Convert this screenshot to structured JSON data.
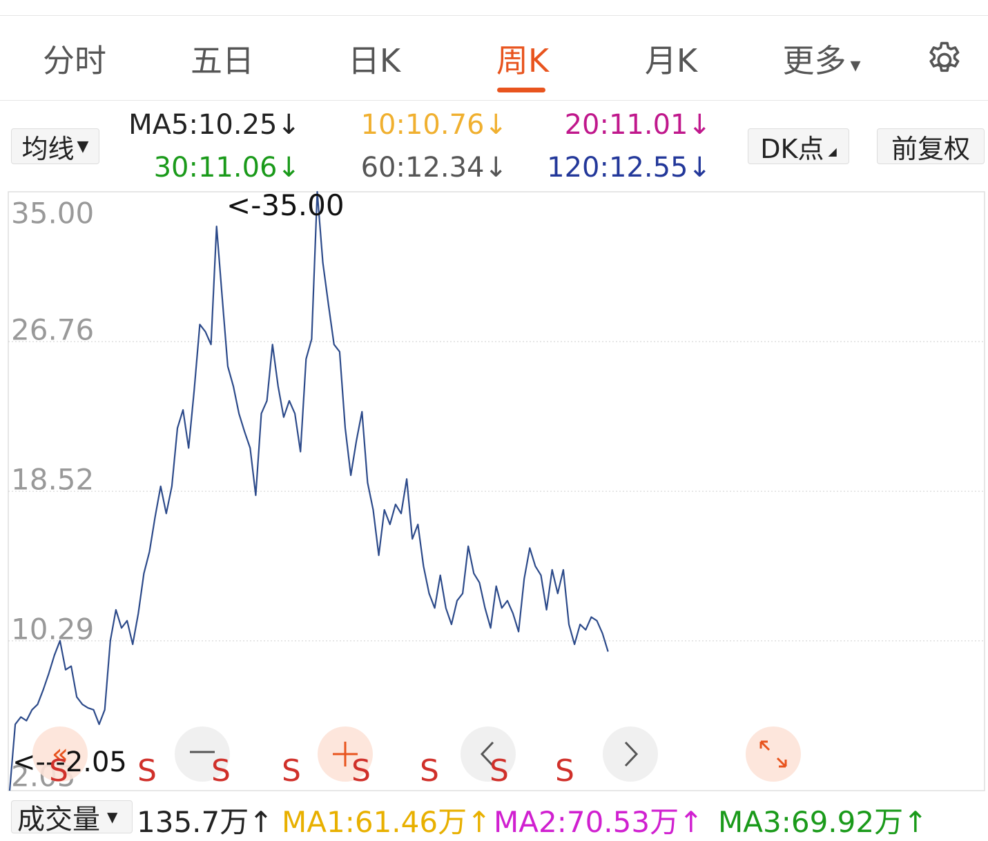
{
  "tabs": [
    "分时",
    "五日",
    "日K",
    "周K",
    "月K",
    "更多"
  ],
  "active_tab": 3,
  "ma_selector": "均线",
  "ma_items": [
    {
      "text": "MA5:10.25↓",
      "color": "#222222"
    },
    {
      "text": "10:10.76↓",
      "color": "#f0b030"
    },
    {
      "text": "20:11.01↓",
      "color": "#c0188c"
    },
    {
      "text": "30:11.06↓",
      "color": "#1a9a1a"
    },
    {
      "text": "60:12.34↓",
      "color": "#555555"
    },
    {
      "text": "120:12.55↓",
      "color": "#23389a"
    }
  ],
  "buttons": [
    "DK点",
    "前复权"
  ],
  "chart_data": {
    "type": "line",
    "ylim": [
      2.05,
      35
    ],
    "yticks": [
      {
        "value": 35,
        "label": "35.00"
      },
      {
        "value": 26.76,
        "label": "26.76"
      },
      {
        "value": 18.52,
        "label": "18.52"
      },
      {
        "value": 10.29,
        "label": "10.29"
      },
      {
        "value": 2.05,
        "label": "2.05"
      }
    ],
    "grid": true,
    "annotations": [
      "<-35.00",
      "<---2.05"
    ],
    "signals": [
      "S",
      "S",
      "S",
      "S",
      "S",
      "S",
      "S",
      "S"
    ],
    "series": [
      {
        "color": "#2c4a8a",
        "values": [
          2.05,
          5.7,
          6.1,
          5.9,
          6.5,
          6.8,
          7.6,
          8.5,
          9.5,
          10.3,
          8.7,
          8.9,
          7.2,
          6.8,
          6.6,
          6.5,
          5.7,
          6.5,
          10.3,
          12.0,
          11.0,
          11.4,
          10.1,
          11.8,
          14.0,
          15.2,
          17.1,
          18.8,
          17.3,
          18.8,
          22.0,
          23.0,
          20.9,
          24.1,
          27.7,
          27.3,
          26.6,
          33.1,
          29.2,
          25.4,
          24.3,
          22.8,
          21.8,
          20.9,
          18.3,
          22.8,
          23.5,
          26.6,
          24.3,
          22.6,
          23.5,
          22.8,
          20.7,
          25.8,
          26.9,
          35.0,
          31.1,
          28.8,
          26.6,
          26.2,
          22.0,
          19.4,
          21.3,
          22.9,
          19.0,
          17.5,
          15.0,
          17.5,
          16.7,
          17.8,
          17.3,
          19.2,
          15.9,
          16.7,
          14.4,
          12.9,
          12.1,
          13.9,
          12.1,
          11.2,
          12.5,
          12.9,
          15.5,
          14.0,
          13.5,
          12.1,
          11.0,
          13.3,
          12.1,
          12.5,
          11.8,
          10.8,
          13.7,
          15.4,
          14.4,
          13.9,
          12.0,
          14.2,
          12.9,
          14.2,
          11.2,
          10.1,
          11.2,
          10.9,
          11.6,
          11.4,
          10.7,
          9.7
        ]
      }
    ]
  },
  "volume_bar": {
    "selector": "成交量",
    "items": [
      {
        "text": "135.7万↑",
        "color": "#222222"
      },
      {
        "text": "MA1:61.46万↑",
        "color": "#e8b000"
      },
      {
        "text": "MA2:70.53万↑",
        "color": "#d020d0"
      },
      {
        "text": "MA3:69.92万↑",
        "color": "#1a9a1a"
      }
    ]
  }
}
